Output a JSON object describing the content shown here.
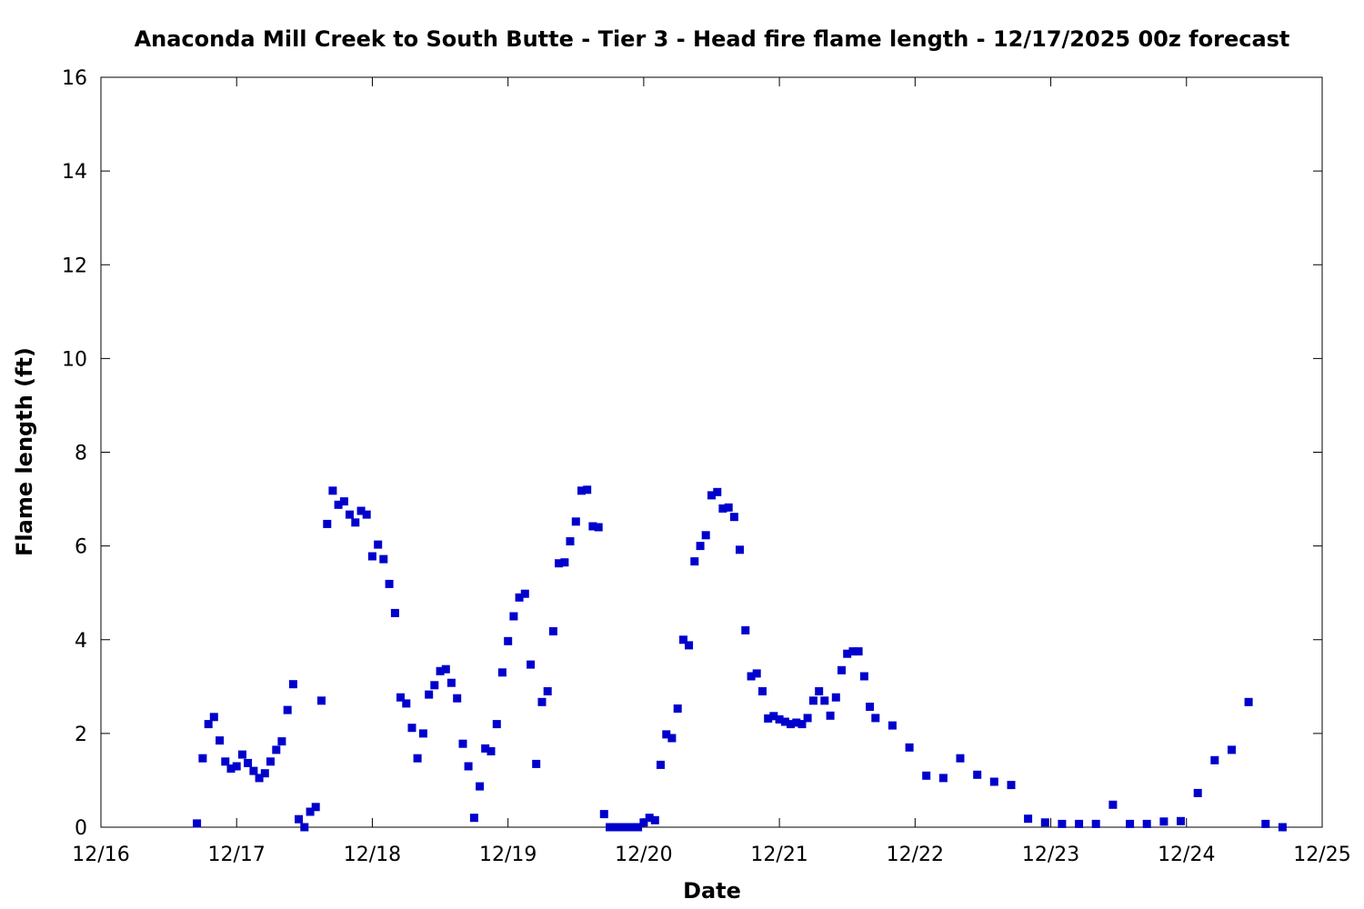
{
  "chart_data": {
    "type": "scatter",
    "title": "Anaconda Mill Creek to South Butte - Tier 3 - Head fire flame length - 12/17/2025 00z forecast",
    "xlabel": "Date",
    "ylabel": "Flame length (ft)",
    "x_unit": "days (16 = 12/16)",
    "xlim": [
      16,
      25
    ],
    "ylim": [
      0,
      16
    ],
    "x_ticks": [
      {
        "value": 16,
        "label": "12/16"
      },
      {
        "value": 17,
        "label": "12/17"
      },
      {
        "value": 18,
        "label": "12/18"
      },
      {
        "value": 19,
        "label": "12/19"
      },
      {
        "value": 20,
        "label": "12/20"
      },
      {
        "value": 21,
        "label": "12/21"
      },
      {
        "value": 22,
        "label": "12/22"
      },
      {
        "value": 23,
        "label": "12/23"
      },
      {
        "value": 24,
        "label": "12/24"
      },
      {
        "value": 25,
        "label": "12/25"
      }
    ],
    "y_ticks": [
      0,
      2,
      4,
      6,
      8,
      10,
      12,
      14,
      16
    ],
    "grid": false,
    "legend": "none",
    "marker_color": "#0000cc",
    "series": [
      {
        "x": [
          16.708,
          16.75,
          16.792,
          16.833,
          16.875,
          16.917,
          16.958,
          17.0,
          17.042,
          17.083,
          17.125,
          17.167,
          17.208,
          17.25,
          17.292,
          17.333,
          17.375,
          17.417,
          17.458,
          17.5,
          17.542,
          17.583,
          17.625,
          17.667,
          17.708,
          17.75,
          17.792,
          17.833,
          17.875,
          17.917,
          17.958,
          18.0,
          18.042,
          18.083,
          18.125,
          18.167,
          18.208,
          18.25,
          18.292,
          18.333,
          18.375,
          18.417,
          18.458,
          18.5,
          18.542,
          18.583,
          18.625,
          18.667,
          18.708,
          18.75,
          18.792,
          18.833,
          18.875,
          18.917,
          18.958,
          19.0,
          19.042,
          19.083,
          19.125,
          19.167,
          19.208,
          19.25,
          19.292,
          19.333,
          19.375,
          19.417,
          19.458,
          19.5,
          19.542,
          19.583,
          19.625,
          19.667,
          19.708,
          19.75,
          19.792,
          19.833,
          19.875,
          19.917,
          19.958,
          20.0,
          20.042,
          20.083,
          20.125,
          20.167,
          20.208,
          20.25,
          20.292,
          20.333,
          20.375,
          20.417,
          20.458,
          20.5,
          20.542,
          20.583,
          20.625,
          20.667,
          20.708,
          20.75,
          20.792,
          20.833,
          20.875,
          20.917,
          20.958,
          21.0,
          21.042,
          21.083,
          21.125,
          21.167,
          21.208,
          21.25,
          21.292,
          21.333,
          21.375,
          21.417,
          21.458,
          21.5,
          21.542,
          21.583,
          21.625,
          21.667,
          21.708,
          21.833,
          21.958,
          22.083,
          22.208,
          22.333,
          22.458,
          22.583,
          22.708,
          22.833,
          22.958,
          23.083,
          23.208,
          23.333,
          23.458,
          23.583,
          23.708,
          23.833,
          23.958,
          24.083,
          24.208,
          24.333,
          24.458,
          24.583,
          24.708
        ],
        "y": [
          0.08,
          1.47,
          2.2,
          2.35,
          1.85,
          1.4,
          1.25,
          1.3,
          1.55,
          1.37,
          1.2,
          1.05,
          1.15,
          1.4,
          1.65,
          1.83,
          2.5,
          3.05,
          0.17,
          0.0,
          0.33,
          0.43,
          2.7,
          6.47,
          7.18,
          6.88,
          6.95,
          6.67,
          6.5,
          6.75,
          6.67,
          5.78,
          6.03,
          5.72,
          5.19,
          4.57,
          2.77,
          2.64,
          2.12,
          1.47,
          2.0,
          2.83,
          3.03,
          3.33,
          3.37,
          3.08,
          2.75,
          1.78,
          1.3,
          0.2,
          0.87,
          1.68,
          1.62,
          2.2,
          3.3,
          3.97,
          4.5,
          4.9,
          4.98,
          3.47,
          1.35,
          2.67,
          2.9,
          4.18,
          5.63,
          5.65,
          6.1,
          6.52,
          7.18,
          7.2,
          6.42,
          6.4,
          0.28,
          0.0,
          0.0,
          0.0,
          0.0,
          0.0,
          0.0,
          0.1,
          0.2,
          0.15,
          1.33,
          1.98,
          1.9,
          2.53,
          4.0,
          3.88,
          5.67,
          6.0,
          6.23,
          7.08,
          7.15,
          6.8,
          6.82,
          6.62,
          5.92,
          4.2,
          3.22,
          3.28,
          2.9,
          2.32,
          2.37,
          2.3,
          2.25,
          2.2,
          2.23,
          2.2,
          2.33,
          2.7,
          2.9,
          2.7,
          2.38,
          2.77,
          3.35,
          3.7,
          3.75,
          3.75,
          3.22,
          2.57,
          2.33,
          2.17,
          1.7,
          1.1,
          1.05,
          1.47,
          1.12,
          0.97,
          0.9,
          0.18,
          0.1,
          0.07,
          0.07,
          0.07,
          0.48,
          0.07,
          0.07,
          0.12,
          0.13,
          0.73,
          1.43,
          1.65,
          2.67,
          0.07,
          0.0
        ]
      }
    ]
  }
}
